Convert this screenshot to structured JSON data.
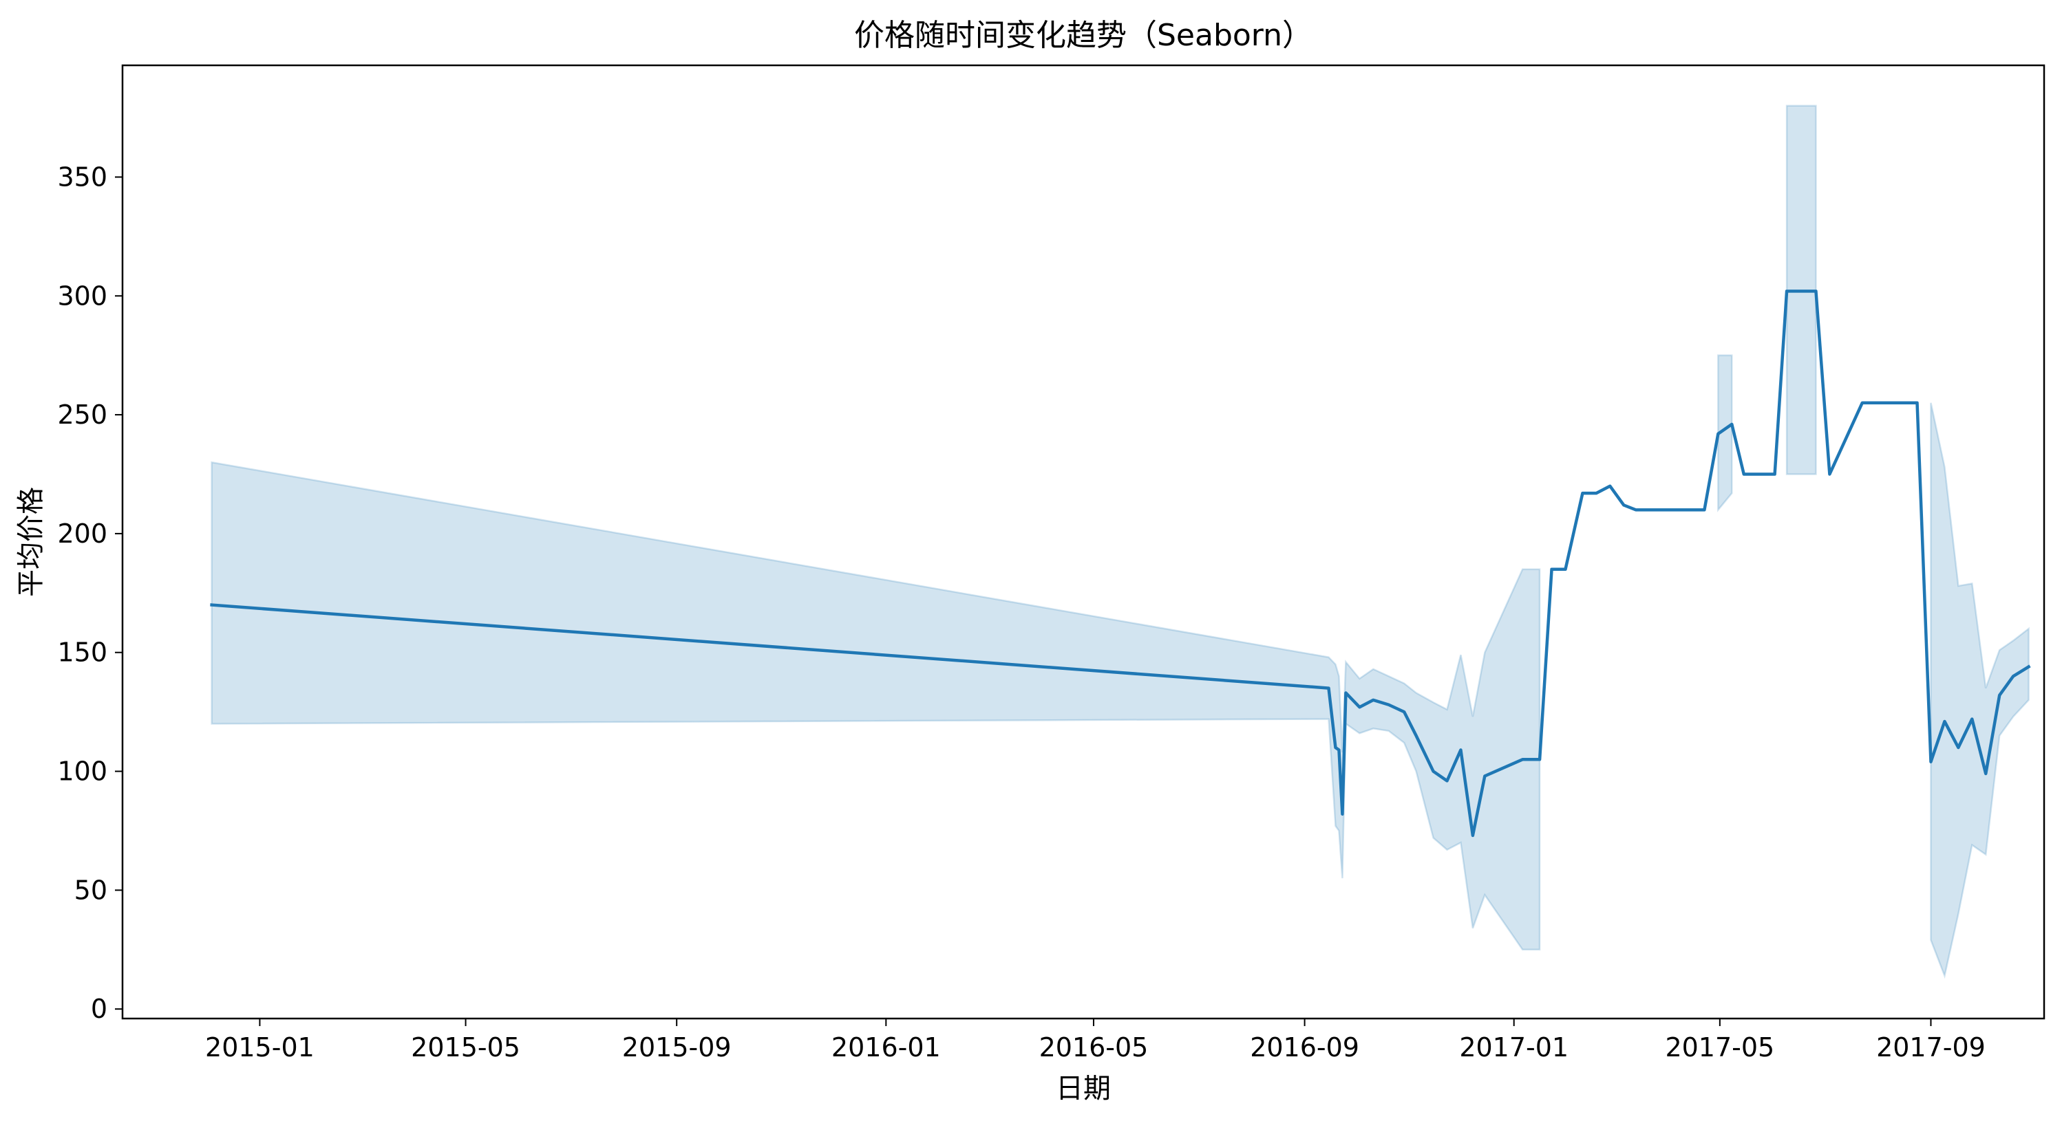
{
  "chart_data": {
    "type": "line",
    "title": "价格随时间变化趋势（Seaborn）",
    "xlabel": "日期",
    "ylabel": "平均价格",
    "x_ticks": [
      "2015-01",
      "2015-05",
      "2015-09",
      "2016-01",
      "2016-05",
      "2016-09",
      "2017-01",
      "2017-05",
      "2017-09"
    ],
    "y_ticks": [
      0,
      50,
      100,
      150,
      200,
      250,
      300,
      350
    ],
    "xlim": [
      "2014-10-13",
      "2017-11-06"
    ],
    "ylim": [
      -4,
      397
    ],
    "grid": false,
    "colors": {
      "line": "#1f77b4",
      "band": "#1f77b4"
    },
    "series": [
      {
        "points": [
          {
            "x": "2014-12-04",
            "y": 170,
            "lo": 120,
            "hi": 230
          },
          {
            "x": "2016-09-15",
            "y": 135,
            "lo": 122,
            "hi": 148
          },
          {
            "x": "2016-09-19",
            "y": 110,
            "lo": 77,
            "hi": 145
          },
          {
            "x": "2016-09-21",
            "y": 109,
            "lo": 75,
            "hi": 140
          },
          {
            "x": "2016-09-23",
            "y": 82,
            "lo": 55,
            "hi": 108
          },
          {
            "x": "2016-09-25",
            "y": 133,
            "lo": 120,
            "hi": 146
          },
          {
            "x": "2016-10-03",
            "y": 127,
            "lo": 116,
            "hi": 139
          },
          {
            "x": "2016-10-11",
            "y": 130,
            "lo": 118,
            "hi": 143
          },
          {
            "x": "2016-10-20",
            "y": 128,
            "lo": 117,
            "hi": 140
          },
          {
            "x": "2016-10-29",
            "y": 125,
            "lo": 112,
            "hi": 137
          },
          {
            "x": "2016-11-05",
            "y": 115,
            "lo": 100,
            "hi": 133
          },
          {
            "x": "2016-11-15",
            "y": 100,
            "lo": 72,
            "hi": 129
          },
          {
            "x": "2016-11-23",
            "y": 96,
            "lo": 67,
            "hi": 126
          },
          {
            "x": "2016-12-01",
            "y": 109,
            "lo": 70,
            "hi": 149
          },
          {
            "x": "2016-12-08",
            "y": 73,
            "lo": 34,
            "hi": 123
          },
          {
            "x": "2016-12-15",
            "y": 98,
            "lo": 48,
            "hi": 150
          },
          {
            "x": "2017-01-06",
            "y": 105,
            "lo": 25,
            "hi": 185
          },
          {
            "x": "2017-01-16",
            "y": 105,
            "lo": 25,
            "hi": 185
          },
          {
            "x": "2017-01-23",
            "y": 185
          },
          {
            "x": "2017-01-31",
            "y": 185
          },
          {
            "x": "2017-02-10",
            "y": 217
          },
          {
            "x": "2017-02-18",
            "y": 217
          },
          {
            "x": "2017-02-26",
            "y": 220
          },
          {
            "x": "2017-03-06",
            "y": 212
          },
          {
            "x": "2017-03-13",
            "y": 210
          },
          {
            "x": "2017-04-22",
            "y": 210
          },
          {
            "x": "2017-04-30",
            "y": 242,
            "lo": 210,
            "hi": 275
          },
          {
            "x": "2017-05-08",
            "y": 246,
            "lo": 217,
            "hi": 275
          },
          {
            "x": "2017-05-15",
            "y": 225
          },
          {
            "x": "2017-06-02",
            "y": 225
          },
          {
            "x": "2017-06-09",
            "y": 302,
            "lo": 225,
            "hi": 380
          },
          {
            "x": "2017-06-26",
            "y": 302,
            "lo": 225,
            "hi": 380
          },
          {
            "x": "2017-07-04",
            "y": 225
          },
          {
            "x": "2017-07-23",
            "y": 255
          },
          {
            "x": "2017-08-24",
            "y": 255
          },
          {
            "x": "2017-09-01",
            "y": 104,
            "lo": 29,
            "hi": 255
          },
          {
            "x": "2017-09-09",
            "y": 121,
            "lo": 14,
            "hi": 228
          },
          {
            "x": "2017-09-17",
            "y": 110,
            "lo": 40,
            "hi": 178
          },
          {
            "x": "2017-09-25",
            "y": 122,
            "lo": 69,
            "hi": 179
          },
          {
            "x": "2017-10-03",
            "y": 99,
            "lo": 65,
            "hi": 135
          },
          {
            "x": "2017-10-11",
            "y": 132,
            "lo": 115,
            "hi": 151
          },
          {
            "x": "2017-10-19",
            "y": 140,
            "lo": 123,
            "hi": 155
          },
          {
            "x": "2017-10-28",
            "y": 144,
            "lo": 130,
            "hi": 160
          }
        ]
      }
    ]
  }
}
